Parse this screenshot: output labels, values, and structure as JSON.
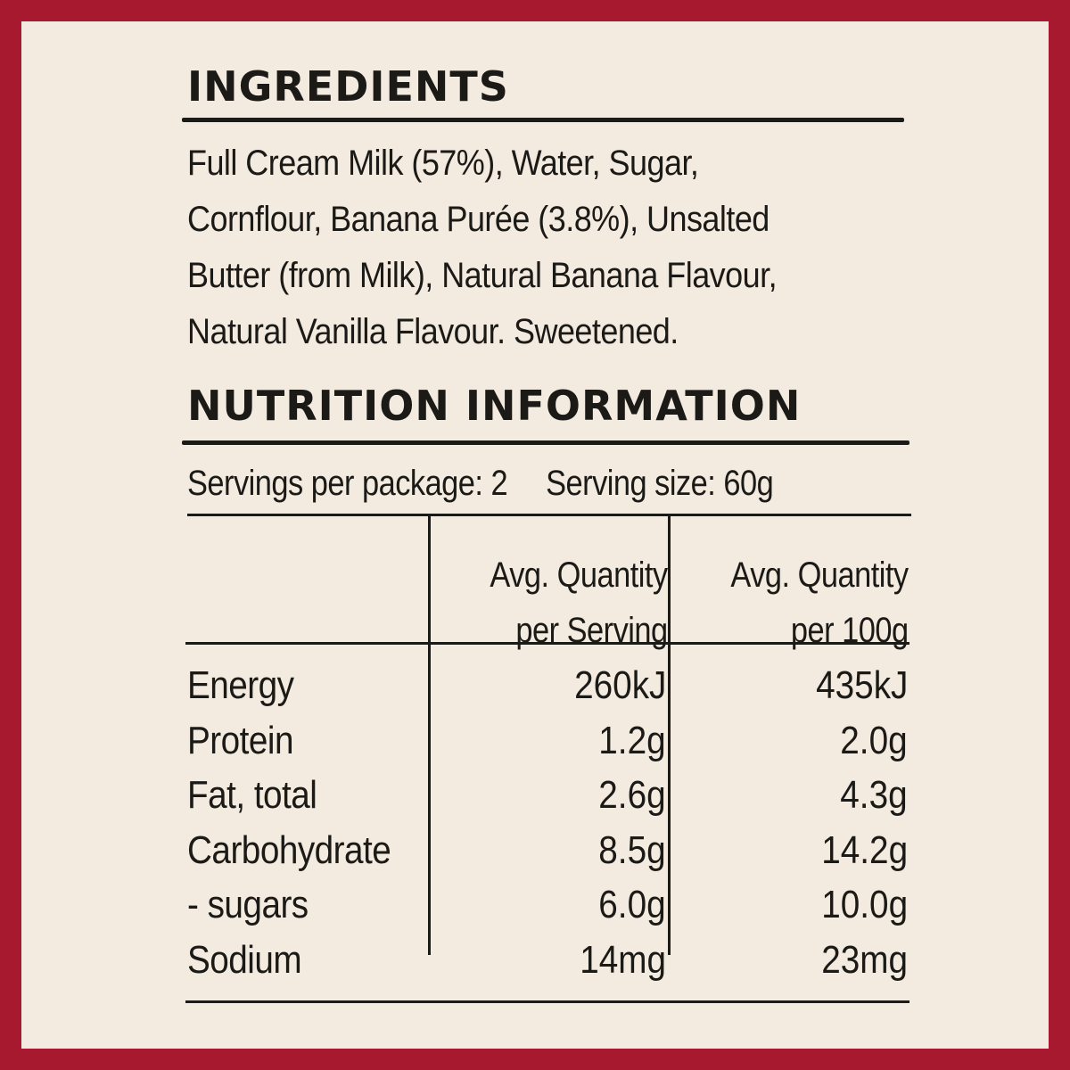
{
  "ingredients": {
    "heading": "INGREDIENTS",
    "text": "Full Cream Milk (57%), Water, Sugar,\nCornflour, Banana Purée (3.8%), Unsalted\nButter (from Milk), Natural Banana Flavour,\nNatural Vanilla Flavour. Sweetened."
  },
  "nutrition": {
    "heading": "NUTRITION INFORMATION",
    "servings_per_package": "Servings per package: 2",
    "serving_size": "Serving size: 60g",
    "columns": [
      {
        "line1": "Avg. Quantity",
        "line2": "per Serving"
      },
      {
        "line1": "Avg. Quantity",
        "line2": "per 100g"
      }
    ],
    "rows": [
      {
        "label": "Energy",
        "per_serving": "260kJ",
        "per_100g": "435kJ"
      },
      {
        "label": "Protein",
        "per_serving": "1.2g",
        "per_100g": "2.0g"
      },
      {
        "label": "Fat, total",
        "per_serving": "2.6g",
        "per_100g": "4.3g"
      },
      {
        "label": "Carbohydrate",
        "per_serving": "8.5g",
        "per_100g": "14.2g"
      },
      {
        "label": "- sugars",
        "per_serving": "6.0g",
        "per_100g": "10.0g"
      },
      {
        "label": "Sodium",
        "per_serving": "14mg",
        "per_100g": "23mg"
      }
    ]
  },
  "colors": {
    "border": "#a6192e",
    "background": "#f3ebe0",
    "ink": "#1c1a17"
  }
}
